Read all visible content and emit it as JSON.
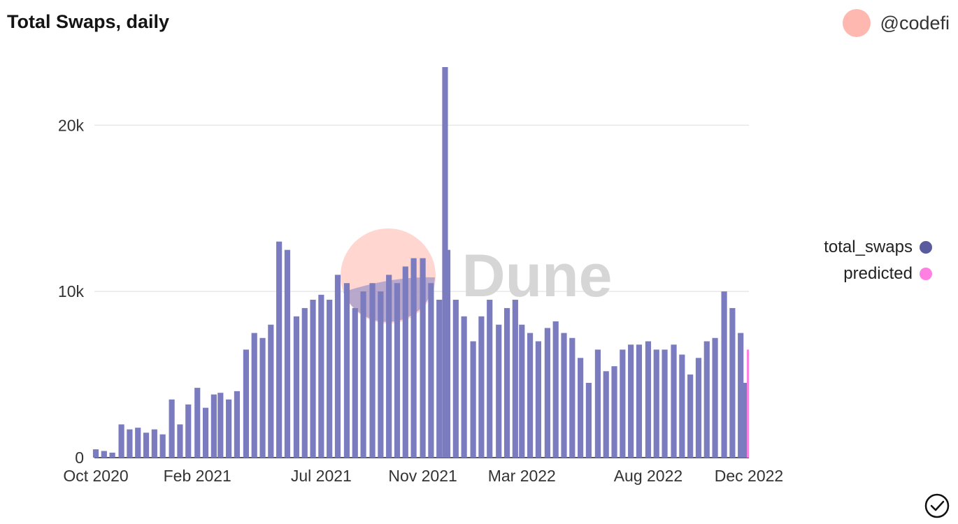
{
  "header": {
    "title": "Total Swaps, daily",
    "author": "@codefi"
  },
  "watermark": "Dune",
  "colors": {
    "total_swaps": "#7b7bc0",
    "total_swaps_legend": "#5a5a9e",
    "predicted": "#ff80e0",
    "avatar": "#ffb8b0",
    "grid": "#e8e8e8"
  },
  "legend": [
    {
      "name": "total_swaps",
      "color": "#5a5a9e"
    },
    {
      "name": "predicted",
      "color": "#ff80e0"
    }
  ],
  "chart_data": {
    "type": "bar",
    "title": "Total Swaps, daily",
    "xlabel": "",
    "ylabel": "",
    "ylim": [
      0,
      23500
    ],
    "yticks": [
      {
        "value": 0,
        "label": "0"
      },
      {
        "value": 10000,
        "label": "10k"
      },
      {
        "value": 20000,
        "label": "20k"
      }
    ],
    "xticks": [
      {
        "date": "2020-10-01",
        "label": "Oct 2020"
      },
      {
        "date": "2021-02-01",
        "label": "Feb 2021"
      },
      {
        "date": "2021-07-01",
        "label": "Jul 2021"
      },
      {
        "date": "2021-11-01",
        "label": "Nov 2021"
      },
      {
        "date": "2022-03-01",
        "label": "Mar 2022"
      },
      {
        "date": "2022-08-01",
        "label": "Aug 2022"
      },
      {
        "date": "2022-12-01",
        "label": "Dec 2022"
      }
    ],
    "x_range": [
      "2020-10-01",
      "2022-12-01"
    ],
    "grid": true,
    "legend_position": "right",
    "series": [
      {
        "name": "total_swaps",
        "points": [
          [
            "2020-10-01",
            500
          ],
          [
            "2020-10-11",
            400
          ],
          [
            "2020-10-21",
            300
          ],
          [
            "2020-11-01",
            2000
          ],
          [
            "2020-11-11",
            1700
          ],
          [
            "2020-11-21",
            1800
          ],
          [
            "2020-12-01",
            1500
          ],
          [
            "2020-12-11",
            1700
          ],
          [
            "2020-12-21",
            1400
          ],
          [
            "2021-01-01",
            3500
          ],
          [
            "2021-01-11",
            2000
          ],
          [
            "2021-01-21",
            3200
          ],
          [
            "2021-02-01",
            4200
          ],
          [
            "2021-02-11",
            3000
          ],
          [
            "2021-02-21",
            3800
          ],
          [
            "2021-03-01",
            3900
          ],
          [
            "2021-03-11",
            3500
          ],
          [
            "2021-03-21",
            4000
          ],
          [
            "2021-04-01",
            6500
          ],
          [
            "2021-04-11",
            7500
          ],
          [
            "2021-04-21",
            7200
          ],
          [
            "2021-05-01",
            8000
          ],
          [
            "2021-05-11",
            13000
          ],
          [
            "2021-05-21",
            12500
          ],
          [
            "2021-06-01",
            8500
          ],
          [
            "2021-06-11",
            9000
          ],
          [
            "2021-06-21",
            9500
          ],
          [
            "2021-07-01",
            9800
          ],
          [
            "2021-07-11",
            9500
          ],
          [
            "2021-07-21",
            11000
          ],
          [
            "2021-08-01",
            10500
          ],
          [
            "2021-08-11",
            9000
          ],
          [
            "2021-08-21",
            10000
          ],
          [
            "2021-09-01",
            10500
          ],
          [
            "2021-09-11",
            10000
          ],
          [
            "2021-09-21",
            11000
          ],
          [
            "2021-10-01",
            10500
          ],
          [
            "2021-10-11",
            11500
          ],
          [
            "2021-10-21",
            12000
          ],
          [
            "2021-11-01",
            12000
          ],
          [
            "2021-11-11",
            10500
          ],
          [
            "2021-11-21",
            9500
          ],
          [
            "2021-11-28",
            23500
          ],
          [
            "2021-12-01",
            12500
          ],
          [
            "2021-12-11",
            9500
          ],
          [
            "2021-12-21",
            8500
          ],
          [
            "2022-01-01",
            7000
          ],
          [
            "2022-01-11",
            8500
          ],
          [
            "2022-01-21",
            9500
          ],
          [
            "2022-02-01",
            8000
          ],
          [
            "2022-02-11",
            9000
          ],
          [
            "2022-02-21",
            9500
          ],
          [
            "2022-03-01",
            8000
          ],
          [
            "2022-03-11",
            7500
          ],
          [
            "2022-03-21",
            7000
          ],
          [
            "2022-04-01",
            7800
          ],
          [
            "2022-04-11",
            8200
          ],
          [
            "2022-04-21",
            7500
          ],
          [
            "2022-05-01",
            7200
          ],
          [
            "2022-05-11",
            6000
          ],
          [
            "2022-05-21",
            4500
          ],
          [
            "2022-06-01",
            6500
          ],
          [
            "2022-06-11",
            5200
          ],
          [
            "2022-06-21",
            5500
          ],
          [
            "2022-07-01",
            6500
          ],
          [
            "2022-07-11",
            6800
          ],
          [
            "2022-07-21",
            6800
          ],
          [
            "2022-08-01",
            7000
          ],
          [
            "2022-08-11",
            6500
          ],
          [
            "2022-08-21",
            6500
          ],
          [
            "2022-09-01",
            6800
          ],
          [
            "2022-09-11",
            6200
          ],
          [
            "2022-09-21",
            5000
          ],
          [
            "2022-10-01",
            6000
          ],
          [
            "2022-10-11",
            7000
          ],
          [
            "2022-10-21",
            7200
          ],
          [
            "2022-11-01",
            10000
          ],
          [
            "2022-11-11",
            9000
          ],
          [
            "2022-11-21",
            7500
          ],
          [
            "2022-12-01",
            4500
          ]
        ]
      },
      {
        "name": "predicted",
        "points": [
          [
            "2022-12-01",
            6500
          ]
        ]
      }
    ]
  }
}
